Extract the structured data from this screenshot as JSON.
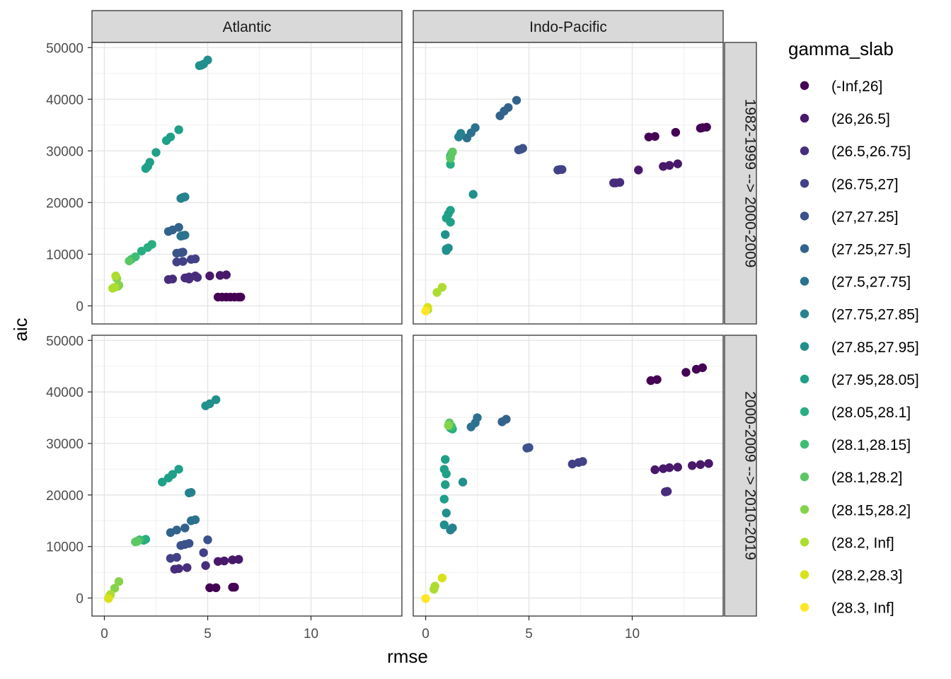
{
  "chart_data": {
    "type": "scatter",
    "xlabel": "rmse",
    "ylabel": "aic",
    "xlim": [
      -0.6,
      14.4
    ],
    "ylim": [
      -3500,
      51000
    ],
    "x_ticks": [
      0,
      5,
      10
    ],
    "y_ticks": [
      0,
      10000,
      20000,
      30000,
      40000,
      50000
    ],
    "grid": true,
    "facet_cols": [
      "Atlantic",
      "Indo-Pacific"
    ],
    "facet_rows": [
      "1982-1999 --> 2000-2009",
      "2000-2009 --> 2010-2019"
    ],
    "legend_title": "gamma_slab",
    "legend_position": "right",
    "categories": [
      {
        "label": "(-Inf,26]",
        "color": "#440154"
      },
      {
        "label": "(26,26.5]",
        "color": "#48186A"
      },
      {
        "label": "(26.5,26.75]",
        "color": "#472D7B"
      },
      {
        "label": "(26.75,27]",
        "color": "#424086"
      },
      {
        "label": "(27,27.25]",
        "color": "#3B528B"
      },
      {
        "label": "(27.25,27.5]",
        "color": "#33638D"
      },
      {
        "label": "(27.5,27.75]",
        "color": "#2C728E"
      },
      {
        "label": "(27.75,27.85]",
        "color": "#26828E"
      },
      {
        "label": "(27.85,27.95]",
        "color": "#21908C"
      },
      {
        "label": "(27.95,28.05]",
        "color": "#1FA088"
      },
      {
        "label": "(28.05,28.1]",
        "color": "#28AE80"
      },
      {
        "label": "(28.1,28.15]",
        "color": "#3FBC73"
      },
      {
        "label": "(28.1,28.2]",
        "color": "#5DC863"
      },
      {
        "label": "(28.15,28.2]",
        "color": "#84D44B"
      },
      {
        "label": "(28.2, Inf]",
        "color": "#ADDC30"
      },
      {
        "label": "(28.2,28.3]",
        "color": "#D8E219"
      },
      {
        "label": "(28.3, Inf]",
        "color": "#FDE725"
      }
    ],
    "panels": [
      {
        "col": "Atlantic",
        "row": "1982-1999 --> 2000-2009",
        "points": [
          [
            6.5,
            1700,
            0
          ],
          [
            6.3,
            1700,
            0
          ],
          [
            6.1,
            1700,
            0
          ],
          [
            5.9,
            1700,
            0
          ],
          [
            5.7,
            1700,
            0
          ],
          [
            5.5,
            1700,
            0
          ],
          [
            6.6,
            1700,
            0
          ],
          [
            5.1,
            5800,
            1
          ],
          [
            5.6,
            5900,
            1
          ],
          [
            5.9,
            6000,
            1
          ],
          [
            3.1,
            5100,
            2
          ],
          [
            3.3,
            5200,
            2
          ],
          [
            3.9,
            5400,
            2
          ],
          [
            4.1,
            5600,
            2
          ],
          [
            4.4,
            5800,
            2
          ],
          [
            4.1,
            5200,
            2
          ],
          [
            4.5,
            5500,
            2
          ],
          [
            3.5,
            8500,
            3
          ],
          [
            3.8,
            8600,
            3
          ],
          [
            4.2,
            9000,
            3
          ],
          [
            4.4,
            9100,
            3
          ],
          [
            3.5,
            10200,
            4
          ],
          [
            3.7,
            10300,
            4
          ],
          [
            3.8,
            10400,
            4
          ],
          [
            3.1,
            14400,
            5
          ],
          [
            3.3,
            14700,
            5
          ],
          [
            3.6,
            15200,
            5
          ],
          [
            3.7,
            13500,
            6
          ],
          [
            3.8,
            13600,
            6
          ],
          [
            3.9,
            13700,
            6
          ],
          [
            3.7,
            20800,
            7
          ],
          [
            3.8,
            21000,
            7
          ],
          [
            3.9,
            21100,
            7
          ],
          [
            4.6,
            46500,
            8
          ],
          [
            4.8,
            46800,
            8
          ],
          [
            5.0,
            47600,
            8
          ],
          [
            4.7,
            46600,
            8
          ],
          [
            2.0,
            26600,
            9
          ],
          [
            2.1,
            27000,
            9
          ],
          [
            2.2,
            27800,
            9
          ],
          [
            2.5,
            29700,
            9
          ],
          [
            3.0,
            32000,
            9
          ],
          [
            3.2,
            32700,
            9
          ],
          [
            3.6,
            34100,
            9
          ],
          [
            2.1,
            11300,
            10
          ],
          [
            2.3,
            11900,
            10
          ],
          [
            1.8,
            10600,
            10
          ],
          [
            1.3,
            9000,
            11
          ],
          [
            1.5,
            9500,
            11
          ],
          [
            1.2,
            8700,
            12
          ],
          [
            0.6,
            5300,
            13
          ],
          [
            0.7,
            4000,
            13
          ],
          [
            0.65,
            3800,
            13
          ],
          [
            0.4,
            3400,
            14
          ],
          [
            0.5,
            3600,
            14
          ],
          [
            0.55,
            5800,
            14
          ]
        ]
      },
      {
        "col": "Indo-Pacific",
        "row": "1982-1999 --> 2000-2009",
        "points": [
          [
            13.3,
            34400,
            0
          ],
          [
            13.6,
            34600,
            0
          ],
          [
            13.4,
            34500,
            0
          ],
          [
            12.1,
            33600,
            0
          ],
          [
            11.1,
            32800,
            0
          ],
          [
            10.8,
            32700,
            0
          ],
          [
            11.5,
            27000,
            1
          ],
          [
            11.8,
            27200,
            1
          ],
          [
            12.2,
            27500,
            1
          ],
          [
            10.3,
            26300,
            1
          ],
          [
            9.1,
            23800,
            2
          ],
          [
            9.4,
            23900,
            2
          ],
          [
            9.2,
            23800,
            2
          ],
          [
            6.4,
            26300,
            3
          ],
          [
            6.5,
            26400,
            3
          ],
          [
            6.6,
            26400,
            3
          ],
          [
            4.5,
            30200,
            4
          ],
          [
            4.7,
            30500,
            4
          ],
          [
            4.6,
            30300,
            4
          ],
          [
            3.6,
            36800,
            5
          ],
          [
            3.8,
            37700,
            5
          ],
          [
            4.0,
            38400,
            5
          ],
          [
            4.4,
            39800,
            5
          ],
          [
            2.0,
            32500,
            6
          ],
          [
            2.2,
            33500,
            6
          ],
          [
            2.4,
            34500,
            6
          ],
          [
            1.6,
            32700,
            7
          ],
          [
            1.7,
            33400,
            7
          ],
          [
            2.3,
            21600,
            8
          ],
          [
            1.0,
            11000,
            8
          ],
          [
            1.1,
            11200,
            8
          ],
          [
            0.95,
            13800,
            8
          ],
          [
            1.0,
            10700,
            8
          ],
          [
            1.2,
            16200,
            9
          ],
          [
            1.2,
            18500,
            9
          ],
          [
            1.1,
            17800,
            9
          ],
          [
            1.0,
            17000,
            9
          ],
          [
            1.2,
            27400,
            10
          ],
          [
            1.2,
            29000,
            10
          ],
          [
            1.25,
            29500,
            11
          ],
          [
            1.3,
            29800,
            12
          ],
          [
            1.2,
            28600,
            12
          ],
          [
            0.1,
            -700,
            13
          ],
          [
            0.8,
            3600,
            14
          ],
          [
            0.55,
            2600,
            14
          ],
          [
            0.1,
            -300,
            15
          ],
          [
            0.0,
            -1000,
            16
          ]
        ]
      },
      {
        "col": "Atlantic",
        "row": "2000-2009 --> 2010-2019",
        "points": [
          [
            5.1,
            2000,
            0
          ],
          [
            5.4,
            2000,
            0
          ],
          [
            6.2,
            2100,
            0
          ],
          [
            6.3,
            2100,
            0
          ],
          [
            5.8,
            7200,
            1
          ],
          [
            6.2,
            7400,
            1
          ],
          [
            6.5,
            7500,
            1
          ],
          [
            5.5,
            7100,
            1
          ],
          [
            3.4,
            5600,
            2
          ],
          [
            3.6,
            5700,
            2
          ],
          [
            4.0,
            5900,
            2
          ],
          [
            4.9,
            6300,
            2
          ],
          [
            3.2,
            7700,
            3
          ],
          [
            3.5,
            7900,
            3
          ],
          [
            4.8,
            8800,
            3
          ],
          [
            3.7,
            10200,
            4
          ],
          [
            3.9,
            10400,
            4
          ],
          [
            4.1,
            10600,
            4
          ],
          [
            5.0,
            11300,
            4
          ],
          [
            3.2,
            12700,
            5
          ],
          [
            3.5,
            13200,
            5
          ],
          [
            3.9,
            13600,
            5
          ],
          [
            4.2,
            15000,
            6
          ],
          [
            4.4,
            15200,
            6
          ],
          [
            4.1,
            20400,
            7
          ],
          [
            4.2,
            20500,
            7
          ],
          [
            4.9,
            37300,
            8
          ],
          [
            5.1,
            37700,
            8
          ],
          [
            5.4,
            38500,
            8
          ],
          [
            2.8,
            22500,
            9
          ],
          [
            3.1,
            23300,
            9
          ],
          [
            3.3,
            24000,
            9
          ],
          [
            3.6,
            25000,
            9
          ],
          [
            2.0,
            11400,
            10
          ],
          [
            1.9,
            11200,
            10
          ],
          [
            1.7,
            11300,
            11
          ],
          [
            1.6,
            11000,
            12
          ],
          [
            1.5,
            10900,
            12
          ],
          [
            0.5,
            1900,
            13
          ],
          [
            0.7,
            3200,
            13
          ],
          [
            0.25,
            400,
            14
          ],
          [
            0.3,
            700,
            14
          ],
          [
            0.2,
            -100,
            15
          ]
        ]
      },
      {
        "col": "Indo-Pacific",
        "row": "2000-2009 --> 2010-2019",
        "points": [
          [
            10.9,
            42200,
            0
          ],
          [
            11.2,
            42400,
            0
          ],
          [
            12.6,
            43800,
            0
          ],
          [
            13.1,
            44400,
            0
          ],
          [
            13.4,
            44700,
            0
          ],
          [
            11.1,
            24900,
            1
          ],
          [
            11.5,
            25100,
            1
          ],
          [
            11.8,
            25300,
            1
          ],
          [
            12.2,
            25400,
            1
          ],
          [
            12.9,
            25700,
            1
          ],
          [
            13.3,
            25900,
            1
          ],
          [
            13.7,
            26100,
            1
          ],
          [
            11.6,
            20600,
            2
          ],
          [
            11.7,
            20700,
            2
          ],
          [
            7.1,
            26000,
            3
          ],
          [
            7.4,
            26300,
            3
          ],
          [
            7.6,
            26500,
            3
          ],
          [
            5.0,
            29200,
            4
          ],
          [
            4.9,
            29100,
            4
          ],
          [
            3.7,
            34200,
            5
          ],
          [
            3.9,
            34700,
            5
          ],
          [
            2.2,
            33200,
            6
          ],
          [
            2.4,
            34000,
            6
          ],
          [
            2.5,
            35000,
            6
          ],
          [
            1.2,
            13200,
            7
          ],
          [
            1.3,
            13600,
            7
          ],
          [
            1.0,
            16500,
            8
          ],
          [
            0.9,
            14200,
            8
          ],
          [
            1.8,
            22500,
            8
          ],
          [
            0.9,
            19200,
            9
          ],
          [
            0.95,
            22000,
            9
          ],
          [
            0.9,
            25000,
            9
          ],
          [
            1.0,
            24100,
            9
          ],
          [
            0.95,
            26900,
            9
          ],
          [
            1.2,
            33000,
            10
          ],
          [
            1.3,
            32800,
            10
          ],
          [
            1.25,
            33300,
            11
          ],
          [
            1.15,
            34000,
            12
          ],
          [
            1.1,
            33500,
            13
          ],
          [
            0.4,
            1700,
            14
          ],
          [
            0.45,
            2300,
            14
          ],
          [
            0.8,
            3900,
            15
          ],
          [
            0.0,
            -100,
            16
          ]
        ]
      }
    ]
  }
}
